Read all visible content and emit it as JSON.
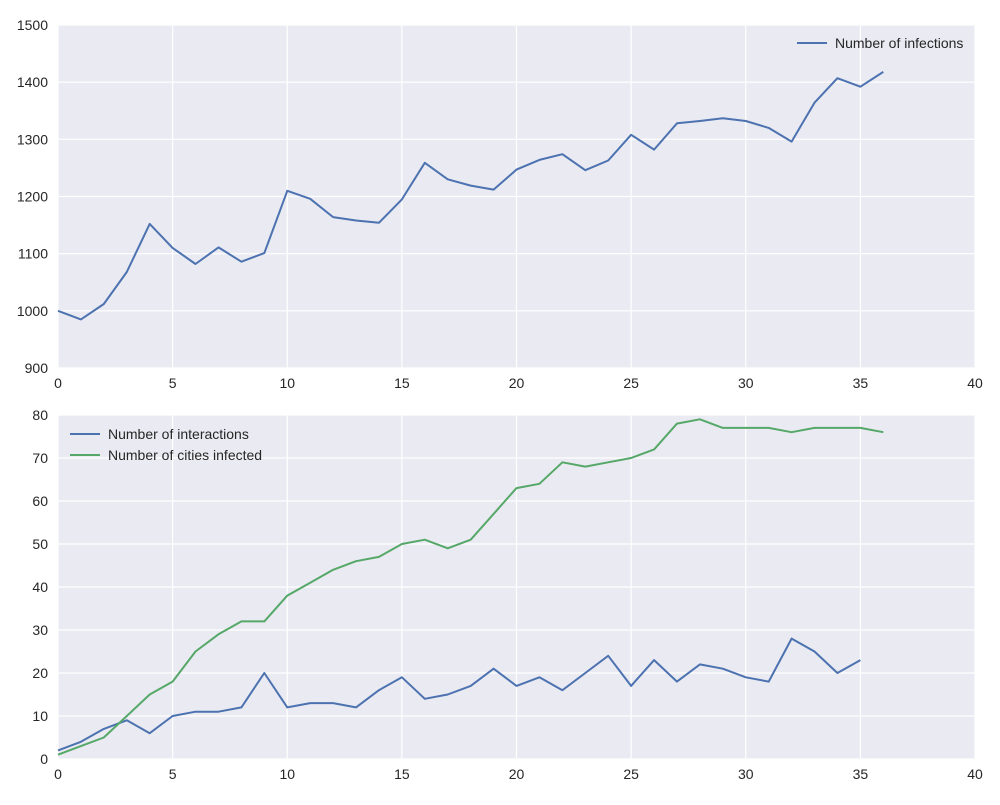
{
  "chart_data": [
    {
      "type": "line",
      "xlim": [
        0,
        40
      ],
      "ylim": [
        900,
        1500
      ],
      "xticks": [
        "0",
        "5",
        "10",
        "15",
        "20",
        "25",
        "30",
        "35",
        "40"
      ],
      "yticks": [
        "900",
        "1000",
        "1100",
        "1200",
        "1300",
        "1400",
        "1500"
      ],
      "grid": true,
      "legend_position": "top-right",
      "series": [
        {
          "name": "Number of infections",
          "color": "#4C72B0",
          "x": [
            0,
            1,
            2,
            3,
            4,
            5,
            6,
            7,
            8,
            9,
            10,
            11,
            12,
            13,
            14,
            15,
            16,
            17,
            18,
            19,
            20,
            21,
            22,
            23,
            24,
            25,
            26,
            27,
            28,
            29,
            30,
            31,
            32,
            33,
            34,
            35,
            36
          ],
          "y": [
            1000,
            985,
            1012,
            1068,
            1152,
            1110,
            1082,
            1111,
            1086,
            1101,
            1210,
            1196,
            1164,
            1158,
            1154,
            1195,
            1259,
            1230,
            1219,
            1212,
            1247,
            1264,
            1274,
            1246,
            1263,
            1308,
            1282,
            1328,
            1332,
            1337,
            1332,
            1320,
            1296,
            1364,
            1407,
            1392,
            1418
          ]
        }
      ]
    },
    {
      "type": "line",
      "xlim": [
        0,
        40
      ],
      "ylim": [
        0,
        80
      ],
      "xticks": [
        "0",
        "5",
        "10",
        "15",
        "20",
        "25",
        "30",
        "35",
        "40"
      ],
      "yticks": [
        "0",
        "10",
        "20",
        "30",
        "40",
        "50",
        "60",
        "70",
        "80"
      ],
      "grid": true,
      "legend_position": "top-left",
      "series": [
        {
          "name": "Number of interactions",
          "color": "#4C72B0",
          "x": [
            0,
            1,
            2,
            3,
            4,
            5,
            6,
            7,
            8,
            9,
            10,
            11,
            12,
            13,
            14,
            15,
            16,
            17,
            18,
            19,
            20,
            21,
            22,
            23,
            24,
            25,
            26,
            27,
            28,
            29,
            30,
            31,
            32,
            33,
            34,
            35
          ],
          "y": [
            2,
            4,
            7,
            9,
            6,
            10,
            11,
            11,
            12,
            20,
            12,
            13,
            13,
            12,
            16,
            19,
            14,
            15,
            17,
            21,
            17,
            19,
            16,
            20,
            24,
            17,
            23,
            18,
            22,
            21,
            19,
            18,
            28,
            25,
            20,
            23
          ]
        },
        {
          "name": "Number of cities infected",
          "color": "#55A868",
          "x": [
            0,
            1,
            2,
            3,
            4,
            5,
            6,
            7,
            8,
            9,
            10,
            11,
            12,
            13,
            14,
            15,
            16,
            17,
            18,
            19,
            20,
            21,
            22,
            23,
            24,
            25,
            26,
            27,
            28,
            29,
            30,
            31,
            32,
            33,
            34,
            35,
            36
          ],
          "y": [
            1,
            3,
            5,
            10,
            15,
            18,
            25,
            29,
            32,
            32,
            38,
            41,
            44,
            46,
            47,
            50,
            51,
            49,
            51,
            57,
            63,
            64,
            69,
            68,
            69,
            70,
            72,
            78,
            79,
            77,
            77,
            77,
            76,
            77,
            77,
            77,
            76
          ]
        }
      ]
    }
  ]
}
